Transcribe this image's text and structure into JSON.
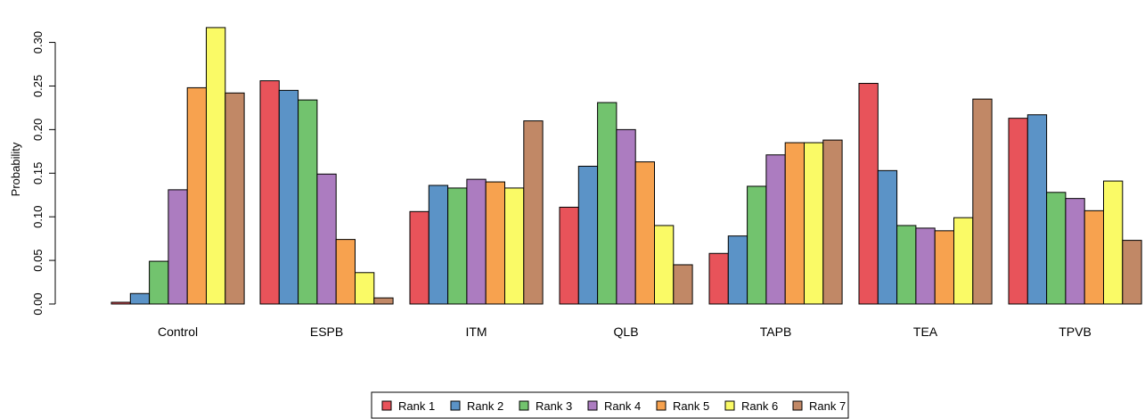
{
  "chart_data": {
    "type": "bar",
    "title": "",
    "xlabel": "",
    "ylabel": "Probability",
    "ylim": [
      0,
      0.32
    ],
    "yticks": [
      "0.00",
      "0.05",
      "0.10",
      "0.15",
      "0.20",
      "0.25",
      "0.30"
    ],
    "grid": false,
    "legend_position": "bottom",
    "categories": [
      "Control",
      "ESPB",
      "ITM",
      "QLB",
      "TAPB",
      "TEA",
      "TPVB"
    ],
    "series": [
      {
        "name": "Rank 1",
        "color": "#E8535A",
        "values": [
          0.002,
          0.256,
          0.106,
          0.111,
          0.058,
          0.253,
          0.213
        ]
      },
      {
        "name": "Rank 2",
        "color": "#5B93C7",
        "values": [
          0.012,
          0.245,
          0.136,
          0.158,
          0.078,
          0.153,
          0.217
        ]
      },
      {
        "name": "Rank 3",
        "color": "#72C36E",
        "values": [
          0.049,
          0.234,
          0.133,
          0.231,
          0.135,
          0.09,
          0.128
        ]
      },
      {
        "name": "Rank 4",
        "color": "#AC7CC0",
        "values": [
          0.131,
          0.149,
          0.143,
          0.2,
          0.171,
          0.087,
          0.121
        ]
      },
      {
        "name": "Rank 5",
        "color": "#F7A24F",
        "values": [
          0.248,
          0.074,
          0.14,
          0.163,
          0.185,
          0.084,
          0.107
        ]
      },
      {
        "name": "Rank 6",
        "color": "#FAFA66",
        "values": [
          0.317,
          0.036,
          0.133,
          0.09,
          0.185,
          0.099,
          0.141
        ]
      },
      {
        "name": "Rank 7",
        "color": "#C18866",
        "values": [
          0.242,
          0.007,
          0.21,
          0.045,
          0.188,
          0.235,
          0.073
        ]
      }
    ]
  }
}
